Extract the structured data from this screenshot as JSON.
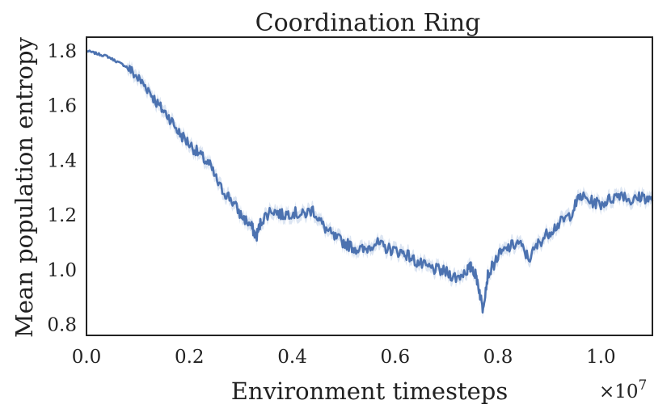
{
  "chart_data": {
    "type": "line",
    "title": "Coordination Ring",
    "xlabel": "Environment timesteps",
    "ylabel": "Mean population entropy",
    "x_multiplier_label": "×10",
    "x_multiplier_exponent": "7",
    "xlim": [
      0.0,
      1.1
    ],
    "ylim": [
      0.76,
      1.85
    ],
    "xticks": [
      0.0,
      0.2,
      0.4,
      0.6,
      0.8,
      1.0
    ],
    "xtick_labels": [
      "0.0",
      "0.2",
      "0.4",
      "0.6",
      "0.8",
      "1.0"
    ],
    "yticks": [
      0.8,
      1.0,
      1.2,
      1.4,
      1.6,
      1.8
    ],
    "ytick_labels": [
      "0.8",
      "1.0",
      "1.2",
      "1.4",
      "1.6",
      "1.8"
    ],
    "grid": false,
    "line_color": "#4c72b0",
    "band_color": "#c5d3ea",
    "series": [
      {
        "x": [
          0.0,
          0.02,
          0.04,
          0.06,
          0.08,
          0.1,
          0.12,
          0.14,
          0.16,
          0.18,
          0.2,
          0.22,
          0.24,
          0.26,
          0.28,
          0.3,
          0.32,
          0.33,
          0.34,
          0.36,
          0.38,
          0.4,
          0.42,
          0.44,
          0.46,
          0.48,
          0.5,
          0.52,
          0.54,
          0.56,
          0.58,
          0.6,
          0.62,
          0.64,
          0.66,
          0.68,
          0.7,
          0.72,
          0.74,
          0.75,
          0.76,
          0.77,
          0.78,
          0.8,
          0.82,
          0.84,
          0.86,
          0.88,
          0.9,
          0.92,
          0.94,
          0.96,
          0.98,
          1.0,
          1.02,
          1.04,
          1.06,
          1.08,
          1.1
        ],
        "y": [
          1.8,
          1.79,
          1.78,
          1.76,
          1.74,
          1.7,
          1.66,
          1.6,
          1.56,
          1.5,
          1.46,
          1.42,
          1.38,
          1.3,
          1.26,
          1.2,
          1.16,
          1.12,
          1.18,
          1.22,
          1.2,
          1.21,
          1.2,
          1.22,
          1.16,
          1.12,
          1.1,
          1.08,
          1.07,
          1.1,
          1.08,
          1.07,
          1.06,
          1.03,
          1.01,
          1.0,
          0.99,
          0.97,
          1.0,
          1.01,
          0.96,
          0.86,
          0.98,
          1.05,
          1.08,
          1.1,
          1.04,
          1.1,
          1.14,
          1.17,
          1.2,
          1.27,
          1.25,
          1.24,
          1.26,
          1.28,
          1.25,
          1.27,
          1.25
        ]
      }
    ]
  }
}
